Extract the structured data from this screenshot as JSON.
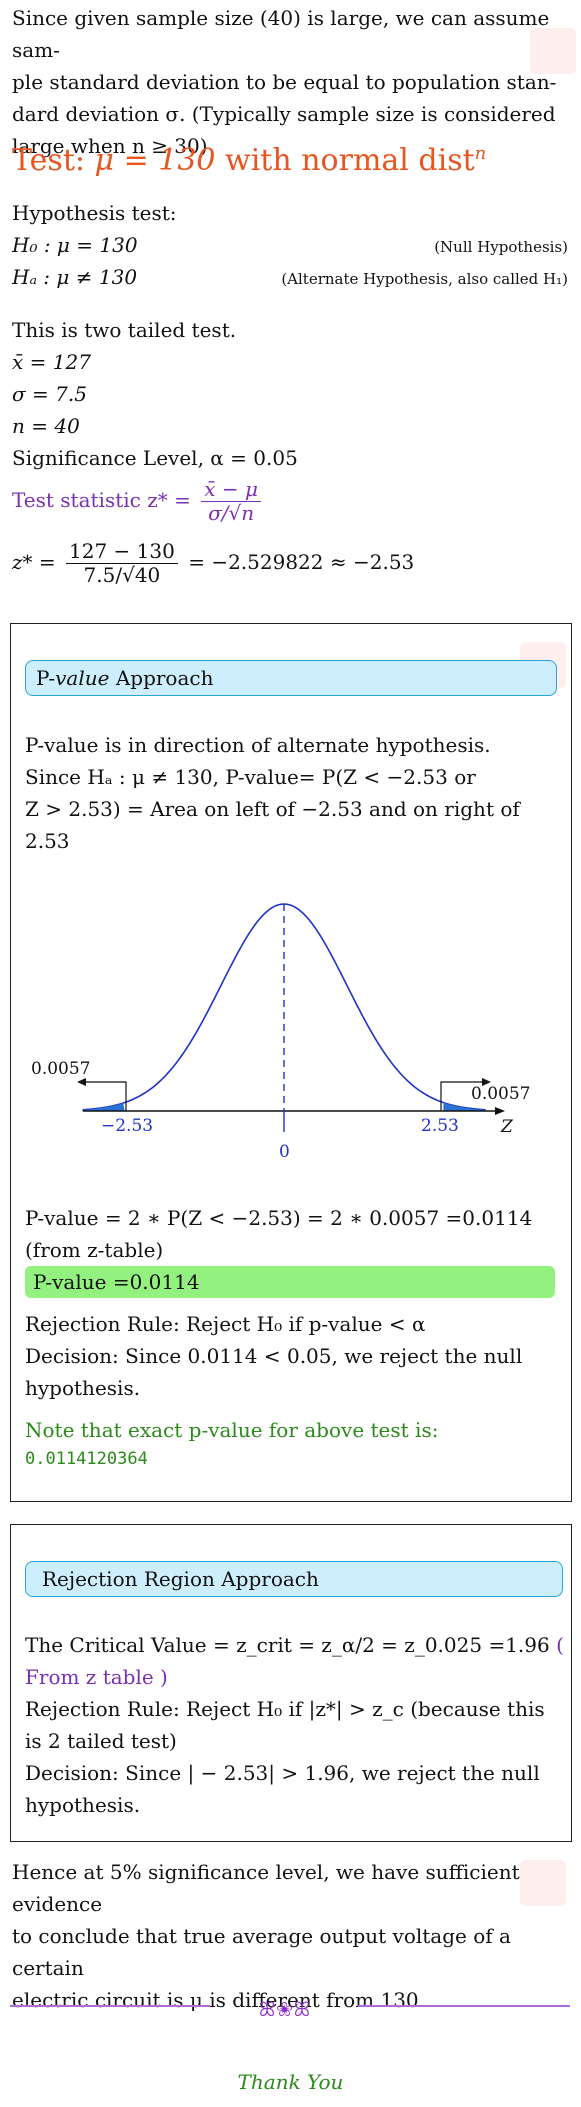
{
  "intro": {
    "line1": "Since given sample size (40) is large, we can assume sam-",
    "line2": "ple standard deviation to be equal to population stan-",
    "line3": "dard deviation σ.  (Typically sample size is considered",
    "line4": "large when n ≥ 30)"
  },
  "test_heading": {
    "prefix": "Test: ",
    "math": "μ = 130",
    "suffix": " with normal dist",
    "sup": "n"
  },
  "hypothesis": {
    "title": "Hypothesis test:",
    "h0": "H₀ : μ = 130",
    "h0_note": "(Null Hypothesis)",
    "ha": "Hₐ : μ ≠ 130",
    "ha_note": "(Alternate Hypothesis, also called H₁)"
  },
  "values": {
    "two_tailed": "This is two tailed test.",
    "xbar": "x̄ = 127",
    "sigma": "σ = 7.5",
    "n": "n = 40",
    "alpha": "Significance Level, α = 0.05"
  },
  "test_statistic": {
    "label": "Test statistic z* =",
    "num": "x̄ − μ",
    "den": "σ/√n",
    "calc_lhs": "z* =",
    "calc_num": "127 − 130",
    "calc_den": "7.5/√40",
    "calc_rhs": "= −2.529822 ≈ −2.53"
  },
  "pvalue_box": {
    "header_p": "P-",
    "header_value": "value",
    "header_rest": " Approach",
    "l1": "P-value is in direction of alternate hypothesis.",
    "l2": "Since Hₐ : μ ≠ 130, P-value= P(Z < −2.53 or",
    "l3": "Z > 2.53) = Area on left of −2.53 and on right of",
    "l4": "2.53",
    "curve": {
      "left_area": "0.0057",
      "right_area": "0.0057",
      "left_tick": "−2.53",
      "right_tick": "2.53",
      "center_tick": "0",
      "axis_label": "Z"
    },
    "calc1": "P-value = 2 ∗ P(Z < −2.53) = 2 ∗ 0.0057 =0.0114",
    "calc2": "(from z-table)",
    "highlight": "P-value =0.0114",
    "rule": "Rejection Rule: Reject H₀ if p-value < α",
    "decision1": "Decision: Since 0.0114 < 0.05, we reject the null",
    "decision2": "hypothesis.",
    "note": "Note that exact p-value for above test is:",
    "exact": "0.0114120364"
  },
  "rejection_box": {
    "header": "Rejection Region Approach",
    "cv": "The Critical Value = z_crit = z_α/2 = z_0.025 =1.96",
    "cv_paren": " (",
    "cv_from": "From z table )",
    "rule1": "Rejection Rule: Reject H₀ if |z*| > z_c (because this",
    "rule2": "is 2 tailed test)",
    "dec1": "Decision: Since | − 2.53| > 1.96, we reject the null",
    "dec2": "hypothesis."
  },
  "conclusion": {
    "l1": "Hence at 5% significance level, we have sufficient evidence",
    "l2": "to conclude that true average output voltage of a certain",
    "l3": "electric circuit is μ is different from 130"
  },
  "footer": {
    "ornament": "ꕤ❀ꕤ",
    "thanks": "Thank You"
  }
}
